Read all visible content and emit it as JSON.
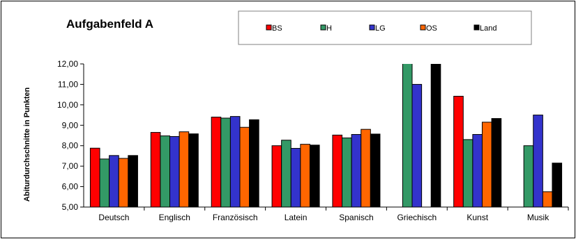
{
  "chart_data": {
    "type": "bar",
    "title": "Aufgabenfeld A",
    "xlabel": "",
    "ylabel": "Abiturdurchschnitte in Punkten",
    "ylim": [
      5,
      12
    ],
    "yticks": [
      "5,00",
      "6,00",
      "7,00",
      "8,00",
      "9,00",
      "10,00",
      "11,00",
      "12,00"
    ],
    "legend_position": "top",
    "grid": false,
    "categories": [
      "Deutsch",
      "Englisch",
      "Französisch",
      "Latein",
      "Spanisch",
      "Griechisch",
      "Kunst",
      "Musik"
    ],
    "series": [
      {
        "name": "BS",
        "color": "#ff0000",
        "values": [
          7.88,
          8.65,
          9.4,
          8.0,
          8.52,
          null,
          10.42,
          null
        ]
      },
      {
        "name": "H",
        "color": "#339966",
        "values": [
          7.35,
          8.48,
          9.35,
          8.27,
          8.38,
          12.5,
          8.3,
          8.0
        ]
      },
      {
        "name": "LG",
        "color": "#3333cc",
        "values": [
          7.52,
          8.45,
          9.43,
          7.87,
          8.55,
          11.0,
          8.55,
          9.5
        ]
      },
      {
        "name": "OS",
        "color": "#ff6600",
        "values": [
          7.38,
          8.68,
          8.9,
          8.07,
          8.8,
          null,
          9.15,
          5.75
        ]
      },
      {
        "name": "Land",
        "color": "#000000",
        "values": [
          7.52,
          8.58,
          9.27,
          8.03,
          8.57,
          12.5,
          9.33,
          7.15
        ]
      }
    ]
  }
}
